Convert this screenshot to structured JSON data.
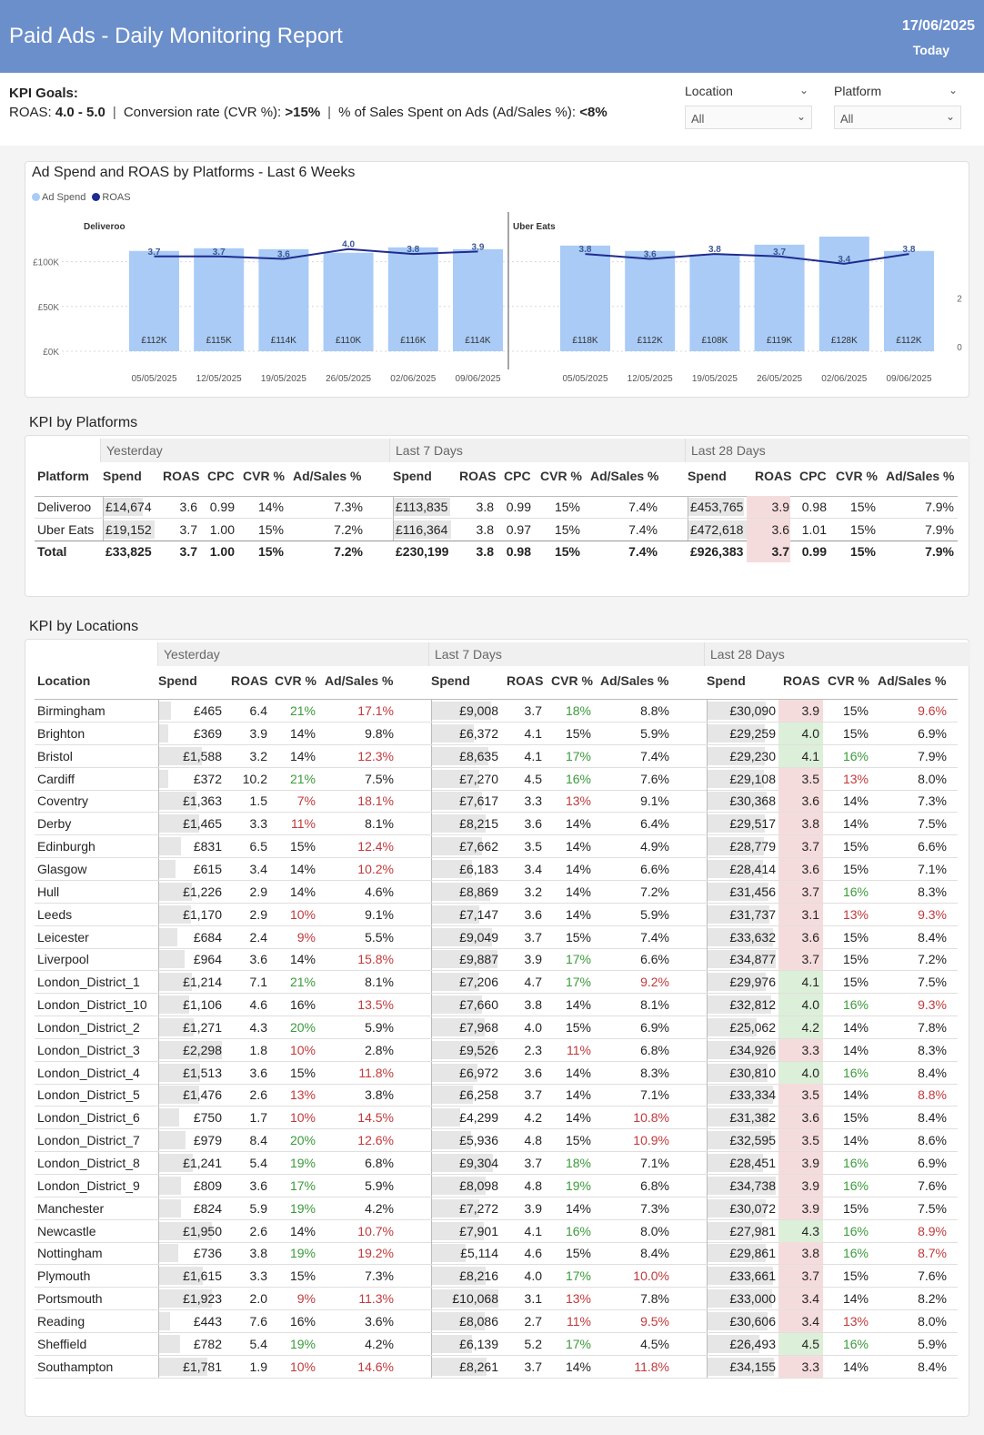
{
  "header": {
    "title": "Paid Ads - Daily Monitoring Report",
    "date": "17/06/2025",
    "today": "Today"
  },
  "kpi_goals": {
    "title": "KPI Goals:",
    "roas_label": "ROAS: ",
    "roas_value": "4.0 - 5.0",
    "cvr_label": "Conversion rate (CVR %): ",
    "cvr_value": ">15%",
    "adsales_label": "% of Sales Spent on Ads (Ad/Sales %): ",
    "adsales_value": "<8%",
    "separator": "|"
  },
  "filters": {
    "location": {
      "label": "Location",
      "value": "All"
    },
    "platform": {
      "label": "Platform",
      "value": "All"
    }
  },
  "colors": {
    "header": "#6b8fcb",
    "bar": "#a9cbf6",
    "line": "#1f2b8f",
    "green": "#3b9a3b",
    "red": "#c0393b"
  },
  "chart_data": {
    "type": "bar",
    "title": "Ad Spend and ROAS by Platforms - Last 6 Weeks",
    "legend": [
      "Ad Spend",
      "ROAS"
    ],
    "legend_position": "top-left",
    "y_left_ticks": [
      "£100K",
      "£50K",
      "£0K"
    ],
    "y_right_ticks": [
      "2",
      "0"
    ],
    "ylim": [
      0,
      125
    ],
    "roas_ylim": [
      0,
      4.4
    ],
    "panels": [
      {
        "name": "Deliveroo",
        "categories": [
          "05/05/2025",
          "12/05/2025",
          "19/05/2025",
          "26/05/2025",
          "02/06/2025",
          "09/06/2025"
        ],
        "spend": [
          112,
          115,
          114,
          110,
          116,
          114
        ],
        "spend_labels": [
          "£112K",
          "£115K",
          "£114K",
          "£110K",
          "£116K",
          "£114K"
        ],
        "roas": [
          3.7,
          3.7,
          3.6,
          4.0,
          3.8,
          3.9
        ],
        "roas_labels": [
          "3.7",
          "3.7",
          "3.6",
          "4.0",
          "3.8",
          "3.9"
        ]
      },
      {
        "name": "Uber Eats",
        "categories": [
          "05/05/2025",
          "12/05/2025",
          "19/05/2025",
          "26/05/2025",
          "02/06/2025",
          "09/06/2025"
        ],
        "spend": [
          118,
          112,
          108,
          119,
          128,
          112
        ],
        "spend_labels": [
          "£118K",
          "£112K",
          "£108K",
          "£119K",
          "£128K",
          "£112K"
        ],
        "roas": [
          3.8,
          3.6,
          3.8,
          3.7,
          3.4,
          3.8
        ],
        "roas_labels": [
          "3.8",
          "3.6",
          "3.8",
          "3.7",
          "3.4",
          "3.8"
        ]
      }
    ]
  },
  "kpi_platforms": {
    "title": "KPI by Platforms",
    "groups": [
      "Yesterday",
      "Last 7 Days",
      "Last 28 Days"
    ],
    "columns": [
      "Platform",
      "Spend",
      "ROAS",
      "CPC",
      "CVR %",
      "Ad/Sales %",
      "Spend",
      "ROAS",
      "CPC",
      "CVR %",
      "Ad/Sales %",
      "Spend",
      "ROAS",
      "CPC",
      "CVR %",
      "Ad/Sales %"
    ],
    "rows": [
      [
        "Deliveroo",
        "£14,674",
        "3.6",
        "0.99",
        "14%",
        "7.3%",
        "£113,835",
        "3.8",
        "0.99",
        "15%",
        "7.4%",
        "£453,765",
        "3.9",
        "0.98",
        "15%",
        "7.9%"
      ],
      [
        "Uber Eats",
        "£19,152",
        "3.7",
        "1.00",
        "15%",
        "7.2%",
        "£116,364",
        "3.8",
        "0.97",
        "15%",
        "7.4%",
        "£472,618",
        "3.6",
        "1.01",
        "15%",
        "7.9%"
      ]
    ],
    "total": [
      "Total",
      "£33,825",
      "3.7",
      "1.00",
      "15%",
      "7.2%",
      "£230,199",
      "3.8",
      "0.98",
      "15%",
      "7.4%",
      "£926,383",
      "3.7",
      "0.99",
      "15%",
      "7.9%"
    ]
  },
  "kpi_locations": {
    "title": "KPI by Locations",
    "groups": [
      "Yesterday",
      "Last 7 Days",
      "Last 28 Days"
    ],
    "columns": [
      "Location",
      "Spend",
      "ROAS",
      "CVR %",
      "Ad/Sales %",
      "Spend",
      "ROAS",
      "CVR %",
      "Ad/Sales %",
      "Spend",
      "ROAS",
      "CVR %",
      "Ad/Sales %"
    ],
    "rows": [
      [
        "Birmingham",
        "£465",
        "6.4",
        "21%",
        "17.1%",
        "£9,008",
        "3.7",
        "18%",
        "8.8%",
        "£30,090",
        "3.9",
        "15%",
        "9.6%"
      ],
      [
        "Brighton",
        "£369",
        "3.9",
        "14%",
        "9.8%",
        "£6,372",
        "4.1",
        "15%",
        "5.9%",
        "£29,259",
        "4.0",
        "15%",
        "6.9%"
      ],
      [
        "Bristol",
        "£1,588",
        "3.2",
        "14%",
        "12.3%",
        "£8,635",
        "4.1",
        "17%",
        "7.4%",
        "£29,230",
        "4.1",
        "16%",
        "7.9%"
      ],
      [
        "Cardiff",
        "£372",
        "10.2",
        "21%",
        "7.5%",
        "£7,270",
        "4.5",
        "16%",
        "7.6%",
        "£29,108",
        "3.5",
        "13%",
        "8.0%"
      ],
      [
        "Coventry",
        "£1,363",
        "1.5",
        "7%",
        "18.1%",
        "£7,617",
        "3.3",
        "13%",
        "9.1%",
        "£30,368",
        "3.6",
        "14%",
        "7.3%"
      ],
      [
        "Derby",
        "£1,465",
        "3.3",
        "11%",
        "8.1%",
        "£8,215",
        "3.6",
        "14%",
        "6.4%",
        "£29,517",
        "3.8",
        "14%",
        "7.5%"
      ],
      [
        "Edinburgh",
        "£831",
        "6.5",
        "15%",
        "12.4%",
        "£7,662",
        "3.5",
        "14%",
        "4.9%",
        "£28,779",
        "3.7",
        "15%",
        "6.6%"
      ],
      [
        "Glasgow",
        "£615",
        "3.4",
        "14%",
        "10.2%",
        "£6,183",
        "3.4",
        "14%",
        "6.6%",
        "£28,414",
        "3.6",
        "15%",
        "7.1%"
      ],
      [
        "Hull",
        "£1,226",
        "2.9",
        "14%",
        "4.6%",
        "£8,869",
        "3.2",
        "14%",
        "7.2%",
        "£31,456",
        "3.7",
        "16%",
        "8.3%"
      ],
      [
        "Leeds",
        "£1,170",
        "2.9",
        "10%",
        "9.1%",
        "£7,147",
        "3.6",
        "14%",
        "5.9%",
        "£31,737",
        "3.1",
        "13%",
        "9.3%"
      ],
      [
        "Leicester",
        "£684",
        "2.4",
        "9%",
        "5.5%",
        "£9,049",
        "3.7",
        "15%",
        "7.4%",
        "£33,632",
        "3.6",
        "15%",
        "8.4%"
      ],
      [
        "Liverpool",
        "£964",
        "3.6",
        "14%",
        "15.8%",
        "£9,887",
        "3.9",
        "17%",
        "6.6%",
        "£34,877",
        "3.7",
        "15%",
        "7.2%"
      ],
      [
        "London_District_1",
        "£1,214",
        "7.1",
        "21%",
        "8.1%",
        "£7,206",
        "4.7",
        "17%",
        "9.2%",
        "£29,976",
        "4.1",
        "15%",
        "7.5%"
      ],
      [
        "London_District_10",
        "£1,106",
        "4.6",
        "16%",
        "13.5%",
        "£7,660",
        "3.8",
        "14%",
        "8.1%",
        "£32,812",
        "4.0",
        "16%",
        "9.3%"
      ],
      [
        "London_District_2",
        "£1,271",
        "4.3",
        "20%",
        "5.9%",
        "£7,968",
        "4.0",
        "15%",
        "6.9%",
        "£25,062",
        "4.2",
        "14%",
        "7.8%"
      ],
      [
        "London_District_3",
        "£2,298",
        "1.8",
        "10%",
        "2.8%",
        "£9,526",
        "2.3",
        "11%",
        "6.8%",
        "£34,926",
        "3.3",
        "14%",
        "8.3%"
      ],
      [
        "London_District_4",
        "£1,513",
        "3.6",
        "15%",
        "11.8%",
        "£6,972",
        "3.6",
        "14%",
        "8.3%",
        "£30,810",
        "4.0",
        "16%",
        "8.4%"
      ],
      [
        "London_District_5",
        "£1,476",
        "2.6",
        "13%",
        "3.8%",
        "£6,258",
        "3.7",
        "14%",
        "7.1%",
        "£33,334",
        "3.5",
        "14%",
        "8.8%"
      ],
      [
        "London_District_6",
        "£750",
        "1.7",
        "10%",
        "14.5%",
        "£4,299",
        "4.2",
        "14%",
        "10.8%",
        "£31,382",
        "3.6",
        "15%",
        "8.4%"
      ],
      [
        "London_District_7",
        "£979",
        "8.4",
        "20%",
        "12.6%",
        "£5,936",
        "4.8",
        "15%",
        "10.9%",
        "£32,595",
        "3.5",
        "14%",
        "8.6%"
      ],
      [
        "London_District_8",
        "£1,241",
        "5.4",
        "19%",
        "6.8%",
        "£9,304",
        "3.7",
        "18%",
        "7.1%",
        "£28,451",
        "3.9",
        "16%",
        "6.9%"
      ],
      [
        "London_District_9",
        "£809",
        "3.6",
        "17%",
        "5.9%",
        "£8,098",
        "4.8",
        "19%",
        "6.8%",
        "£34,738",
        "3.9",
        "16%",
        "7.6%"
      ],
      [
        "Manchester",
        "£824",
        "5.9",
        "19%",
        "4.2%",
        "£7,272",
        "3.9",
        "14%",
        "7.3%",
        "£30,072",
        "3.9",
        "15%",
        "7.5%"
      ],
      [
        "Newcastle",
        "£1,950",
        "2.6",
        "14%",
        "10.7%",
        "£7,901",
        "4.1",
        "16%",
        "8.0%",
        "£27,981",
        "4.3",
        "16%",
        "8.9%"
      ],
      [
        "Nottingham",
        "£736",
        "3.8",
        "19%",
        "19.2%",
        "£5,114",
        "4.6",
        "15%",
        "8.4%",
        "£29,861",
        "3.8",
        "16%",
        "8.7%"
      ],
      [
        "Plymouth",
        "£1,615",
        "3.3",
        "15%",
        "7.3%",
        "£8,216",
        "4.0",
        "17%",
        "10.0%",
        "£33,661",
        "3.7",
        "15%",
        "7.6%"
      ],
      [
        "Portsmouth",
        "£1,923",
        "2.0",
        "9%",
        "11.3%",
        "£10,068",
        "3.1",
        "13%",
        "7.8%",
        "£33,000",
        "3.4",
        "14%",
        "8.2%"
      ],
      [
        "Reading",
        "£443",
        "7.6",
        "16%",
        "3.6%",
        "£8,086",
        "2.7",
        "11%",
        "9.5%",
        "£30,606",
        "3.4",
        "13%",
        "8.0%"
      ],
      [
        "Sheffield",
        "£782",
        "5.4",
        "19%",
        "4.2%",
        "£6,139",
        "5.2",
        "17%",
        "4.5%",
        "£26,493",
        "4.5",
        "16%",
        "5.9%"
      ],
      [
        "Southampton",
        "£1,781",
        "1.9",
        "10%",
        "14.6%",
        "£8,261",
        "3.7",
        "14%",
        "11.8%",
        "£34,155",
        "3.3",
        "14%",
        "8.4%"
      ]
    ]
  }
}
